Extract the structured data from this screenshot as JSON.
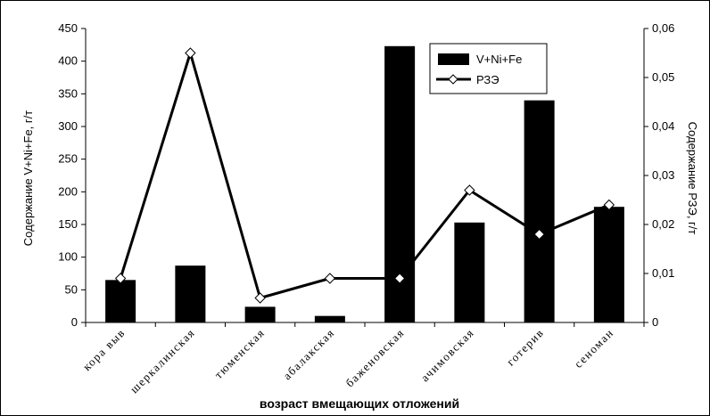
{
  "chart_data": {
    "type": "bar",
    "categories": [
      "кора выв",
      "шеркалинская",
      "тюменская",
      "абалакская",
      "баженовская",
      "ачимовская",
      "готерив",
      "сеноман"
    ],
    "series": [
      {
        "name": "V+Ni+Fe",
        "kind": "bar",
        "axis": "left",
        "color": "#000000",
        "values": [
          65,
          87,
          24,
          10,
          423,
          153,
          340,
          177
        ]
      },
      {
        "name": "РЗЭ",
        "kind": "line",
        "axis": "right",
        "color": "#000000",
        "values": [
          0.009,
          0.055,
          0.005,
          0.009,
          0.009,
          0.027,
          0.018,
          0.024
        ]
      }
    ],
    "ylabel": "Содержание V+Ni+Fe, г/т",
    "y2label": "Содержание РЗЭ, г/т",
    "xlabel": "возраст вмещающих отложений",
    "ylim": [
      0,
      450
    ],
    "y2lim": [
      0,
      0.06
    ],
    "yticks": [
      "0",
      "50",
      "100",
      "150",
      "200",
      "250",
      "300",
      "350",
      "400",
      "450"
    ],
    "y2ticks": [
      "0",
      "0,01",
      "0,02",
      "0,03",
      "0,04",
      "0,05",
      "0,06"
    ],
    "grid": false,
    "legend": "top-right"
  }
}
